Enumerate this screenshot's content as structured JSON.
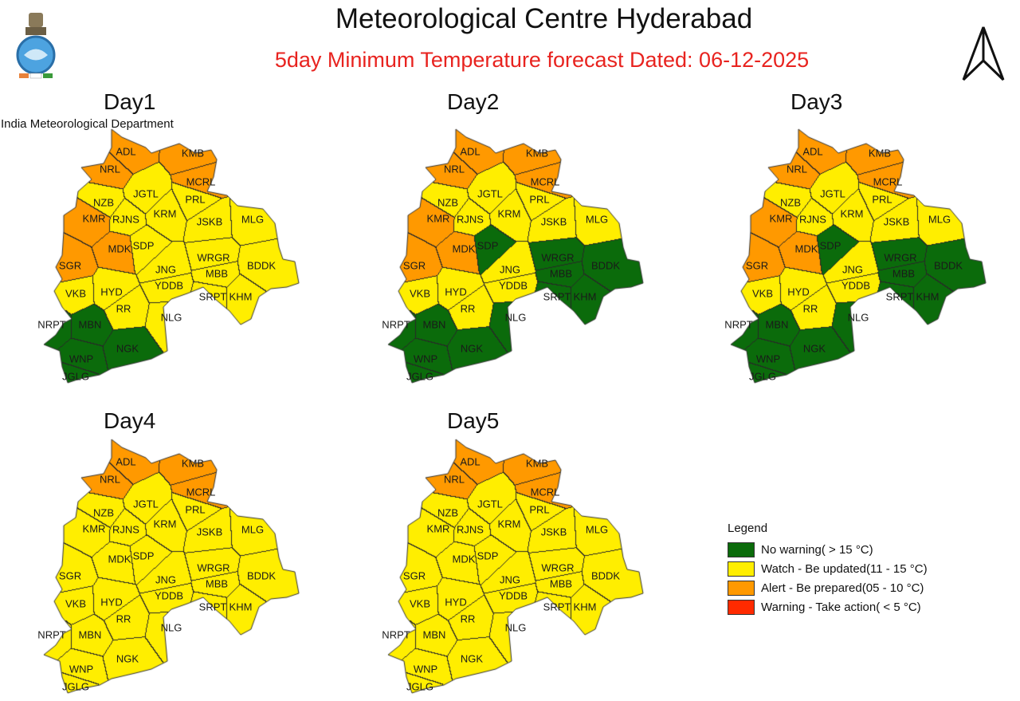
{
  "header": {
    "title": "Meteorological Centre Hyderabad",
    "subtitle": "5day Minimum Temperature forecast Dated: 06-12-2025",
    "organization": "India Meteorological Department",
    "logo": "imd-emblem",
    "north_arrow": "north-arrow-icon"
  },
  "colors": {
    "green": "#0b6b0b",
    "yellow": "#ffee00",
    "orange": "#ff9900",
    "red": "#ff2a00"
  },
  "legend": {
    "title": "Legend",
    "items": [
      {
        "label": "No warning( > 15 °C)",
        "color": "#0b6b0b"
      },
      {
        "label": "Watch - Be updated(11 - 15 °C)",
        "color": "#ffee00"
      },
      {
        "label": "Alert - Be prepared(05 - 10 °C)",
        "color": "#ff9900"
      },
      {
        "label": "Warning - Take action( < 5 °C)",
        "color": "#ff2a00"
      }
    ]
  },
  "districts": [
    "ADL",
    "NRL",
    "KMB",
    "MCRL",
    "PRL",
    "JGTL",
    "NZB",
    "KMR",
    "RJNS",
    "KRM",
    "JSKB",
    "MLG",
    "MDK",
    "SDP",
    "SGR",
    "WRGR",
    "BDDK",
    "JNG",
    "MBB",
    "YDDB",
    "VKB",
    "HYD",
    "RR",
    "SRPT",
    "KHM",
    "NLG",
    "NRPT",
    "MBN",
    "NGK",
    "WNP",
    "JGLG"
  ],
  "days": [
    {
      "label": "Day1",
      "orange": [
        "ADL",
        "NRL",
        "KMB",
        "MCRL",
        "KMR",
        "MDK",
        "SGR"
      ],
      "green": [
        "NRPT",
        "MBN",
        "NGK",
        "WNP",
        "JGLG"
      ],
      "default": "yellow"
    },
    {
      "label": "Day2",
      "orange": [
        "ADL",
        "NRL",
        "KMB",
        "MCRL",
        "KMR",
        "MDK",
        "SGR"
      ],
      "green": [
        "SDP",
        "WRGR",
        "MBB",
        "BDDK",
        "SRPT",
        "KHM",
        "NLG",
        "NRPT",
        "MBN",
        "NGK",
        "WNP",
        "JGLG"
      ],
      "default": "yellow"
    },
    {
      "label": "Day3",
      "orange": [
        "ADL",
        "NRL",
        "KMB",
        "MCRL",
        "KMR",
        "MDK",
        "SGR"
      ],
      "green": [
        "SDP",
        "WRGR",
        "MBB",
        "BDDK",
        "SRPT",
        "KHM",
        "NLG",
        "NRPT",
        "MBN",
        "NGK",
        "WNP",
        "JGLG"
      ],
      "default": "yellow"
    },
    {
      "label": "Day4",
      "orange": [
        "ADL",
        "NRL",
        "KMB",
        "MCRL"
      ],
      "green": [],
      "default": "yellow"
    },
    {
      "label": "Day5",
      "orange": [
        "ADL",
        "NRL",
        "KMB",
        "MCRL"
      ],
      "green": [],
      "default": "yellow"
    }
  ]
}
